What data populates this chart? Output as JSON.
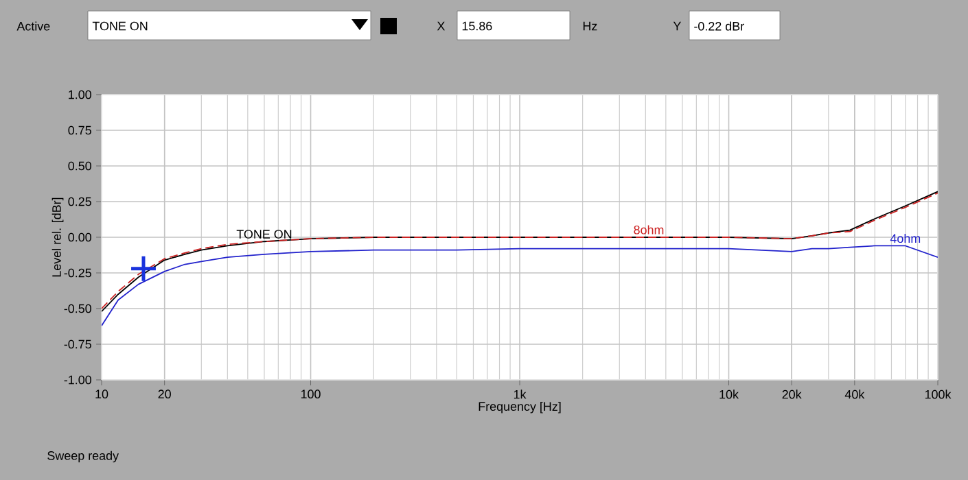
{
  "chart_data": {
    "type": "line",
    "xlabel": "Frequency [Hz]",
    "ylabel": "Level rel. [dBr]",
    "log": "x",
    "grid": true,
    "legend": false,
    "xlim": [
      10,
      100000
    ],
    "xticks": [
      10,
      20,
      100,
      {
        "value": 1000,
        "label": "1k"
      },
      {
        "value": 10000,
        "label": "10k"
      },
      {
        "value": 20000,
        "label": "20k"
      },
      {
        "value": 40000,
        "label": "40k"
      },
      {
        "value": 100000,
        "label": "100k"
      }
    ],
    "ylim": [
      -1,
      1
    ],
    "yticks": [
      {
        "value": -1,
        "label": "-1.00"
      },
      {
        "value": -0.75,
        "label": "-0.75"
      },
      {
        "value": -0.5,
        "label": "-0.50"
      },
      {
        "value": -0.25,
        "label": "-0.25"
      },
      {
        "value": 0,
        "label": "0.00"
      },
      {
        "value": 0.25,
        "label": "0.25"
      },
      {
        "value": 0.5,
        "label": "0.50"
      },
      {
        "value": 0.75,
        "label": "0.75"
      },
      {
        "value": 1,
        "label": "1.00"
      }
    ],
    "series": [
      {
        "name": "TONE ON",
        "color": "#000000",
        "line_style": "solid",
        "x": [
          10,
          12,
          15,
          20,
          25,
          30,
          40,
          60,
          100,
          200,
          500,
          1000,
          2000,
          5000,
          10000,
          20000,
          25000,
          30000,
          38000,
          50000,
          70000,
          100000
        ],
        "values": [
          -0.52,
          -0.4,
          -0.28,
          -0.16,
          -0.12,
          -0.09,
          -0.06,
          -0.03,
          -0.01,
          0.0,
          0.0,
          0.0,
          0.0,
          0.0,
          0.0,
          -0.01,
          0.01,
          0.03,
          0.05,
          0.13,
          0.22,
          0.32
        ]
      },
      {
        "name": "8ohm",
        "color": "#cc2222",
        "line_style": "dashed",
        "x": [
          10,
          12,
          15,
          20,
          25,
          30,
          40,
          60,
          100,
          200,
          500,
          1000,
          2000,
          5000,
          10000,
          20000,
          25000,
          30000,
          38000,
          50000,
          70000,
          100000
        ],
        "values": [
          -0.5,
          -0.38,
          -0.26,
          -0.15,
          -0.11,
          -0.08,
          -0.05,
          -0.03,
          -0.01,
          0.0,
          0.0,
          0.0,
          0.0,
          0.0,
          0.0,
          -0.01,
          0.01,
          0.03,
          0.04,
          0.12,
          0.21,
          0.31
        ]
      },
      {
        "name": "4ohm",
        "color": "#2222cc",
        "line_style": "solid",
        "x": [
          10,
          12,
          15,
          20,
          25,
          30,
          40,
          60,
          100,
          200,
          500,
          1000,
          2000,
          5000,
          10000,
          20000,
          25000,
          30000,
          38000,
          50000,
          70000,
          100000
        ],
        "values": [
          -0.62,
          -0.44,
          -0.33,
          -0.24,
          -0.19,
          -0.17,
          -0.14,
          -0.12,
          -0.1,
          -0.09,
          -0.09,
          -0.08,
          -0.08,
          -0.08,
          -0.08,
          -0.1,
          -0.08,
          -0.08,
          -0.07,
          -0.06,
          -0.06,
          -0.14
        ]
      },
      {
        "type": "scatter",
        "color": "#1a33dd",
        "marker": "cross",
        "x": [
          15.86
        ],
        "values": [
          -0.22
        ]
      }
    ],
    "annotations": [
      "Active",
      "TONE ON",
      "X",
      "15.86",
      "Hz",
      "Y",
      "-0.22 dBr",
      "Sweep ready"
    ]
  }
}
